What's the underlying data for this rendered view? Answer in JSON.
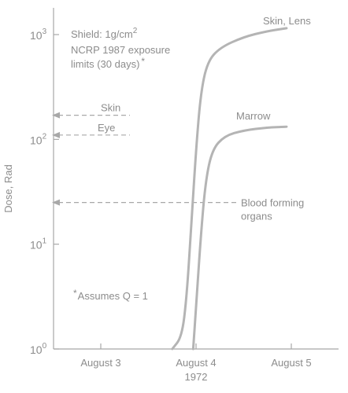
{
  "chart_data": {
    "type": "line",
    "title": "",
    "xlabel": "1972",
    "ylabel": "Dose, Rad",
    "y_scale": "log",
    "ylim": [
      1,
      1500
    ],
    "x_categories": [
      "August 3",
      "August 4",
      "August 5"
    ],
    "xlim_days": [
      2.5,
      5.5
    ],
    "y_ticks": [
      {
        "value": 1,
        "label_base": "10",
        "label_exp": "0"
      },
      {
        "value": 10,
        "label_base": "10",
        "label_exp": "1"
      },
      {
        "value": 100,
        "label_base": "10",
        "label_exp": "2"
      },
      {
        "value": 1000,
        "label_base": "10",
        "label_exp": "3"
      }
    ],
    "series": [
      {
        "name": "Skin, Lens",
        "points": [
          [
            3.75,
            1
          ],
          [
            3.85,
            1.3
          ],
          [
            3.9,
            3
          ],
          [
            3.95,
            15
          ],
          [
            4.0,
            80
          ],
          [
            4.05,
            280
          ],
          [
            4.12,
            550
          ],
          [
            4.25,
            750
          ],
          [
            4.5,
            950
          ],
          [
            4.75,
            1080
          ],
          [
            4.95,
            1150
          ]
        ]
      },
      {
        "name": "Marrow",
        "points": [
          [
            3.97,
            1
          ],
          [
            4.0,
            2.5
          ],
          [
            4.05,
            12
          ],
          [
            4.1,
            40
          ],
          [
            4.17,
            80
          ],
          [
            4.3,
            108
          ],
          [
            4.5,
            122
          ],
          [
            4.75,
            130
          ],
          [
            4.95,
            132
          ]
        ]
      }
    ],
    "reference_lines": [
      {
        "label": "Skin",
        "value": 170
      },
      {
        "label": "Eye",
        "value": 110
      },
      {
        "label": "Blood forming organs",
        "value": 25
      }
    ],
    "annotations": {
      "shield_prefix": "Shield: 1g/cm",
      "shield_exp": "2",
      "limits_line1": "NCRP 1987 exposure",
      "limits_line2": "limits (30 days)",
      "limits_marker": "*",
      "footnote_marker": "*",
      "footnote": "Assumes Q = 1"
    },
    "grid": false
  }
}
